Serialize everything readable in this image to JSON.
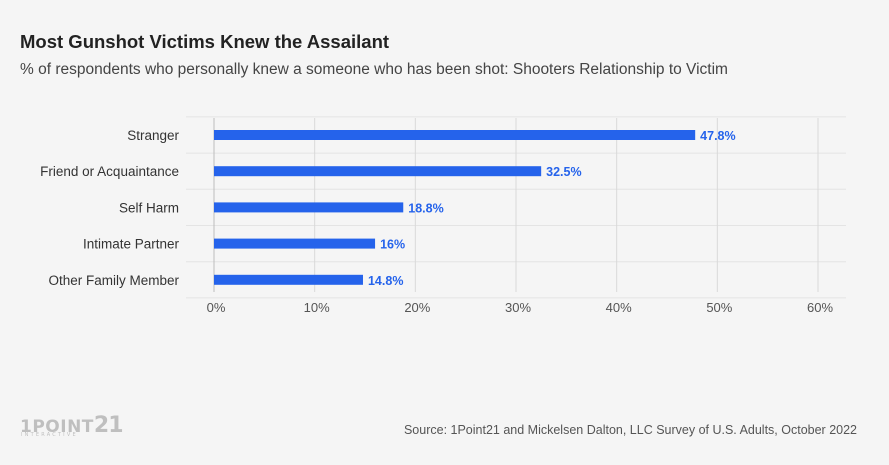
{
  "header": {
    "title": "Most Gunshot Victims Knew the Assailant",
    "subtitle": "% of respondents who personally knew a someone who has been shot: Shooters Relationship to Victim"
  },
  "chart_data": {
    "type": "bar",
    "orientation": "horizontal",
    "categories": [
      "Stranger",
      "Friend or Acquaintance",
      "Self Harm",
      "Intimate Partner",
      "Other Family Member"
    ],
    "values": [
      47.8,
      32.5,
      18.8,
      16,
      14.8
    ],
    "data_labels": [
      "47.8%",
      "32.5%",
      "18.8%",
      "16%",
      "14.8%"
    ],
    "xlim": [
      0,
      60
    ],
    "x_ticks": [
      0,
      10,
      20,
      30,
      40,
      50,
      60
    ],
    "x_tick_labels": [
      "0%",
      "10%",
      "20%",
      "30%",
      "40%",
      "50%",
      "60%"
    ],
    "grid": true,
    "legend": "none",
    "colors": {
      "bar": "#2563eb",
      "label": "#2563eb",
      "grid": "#d9d9d9"
    }
  },
  "footer": {
    "logo_text": "1POINT",
    "logo_number": "21",
    "logo_tagline": "INTERACTIVE",
    "source": "Source: 1Point21 and Mickelsen Dalton, LLC Survey of U.S. Adults, October 2022"
  }
}
